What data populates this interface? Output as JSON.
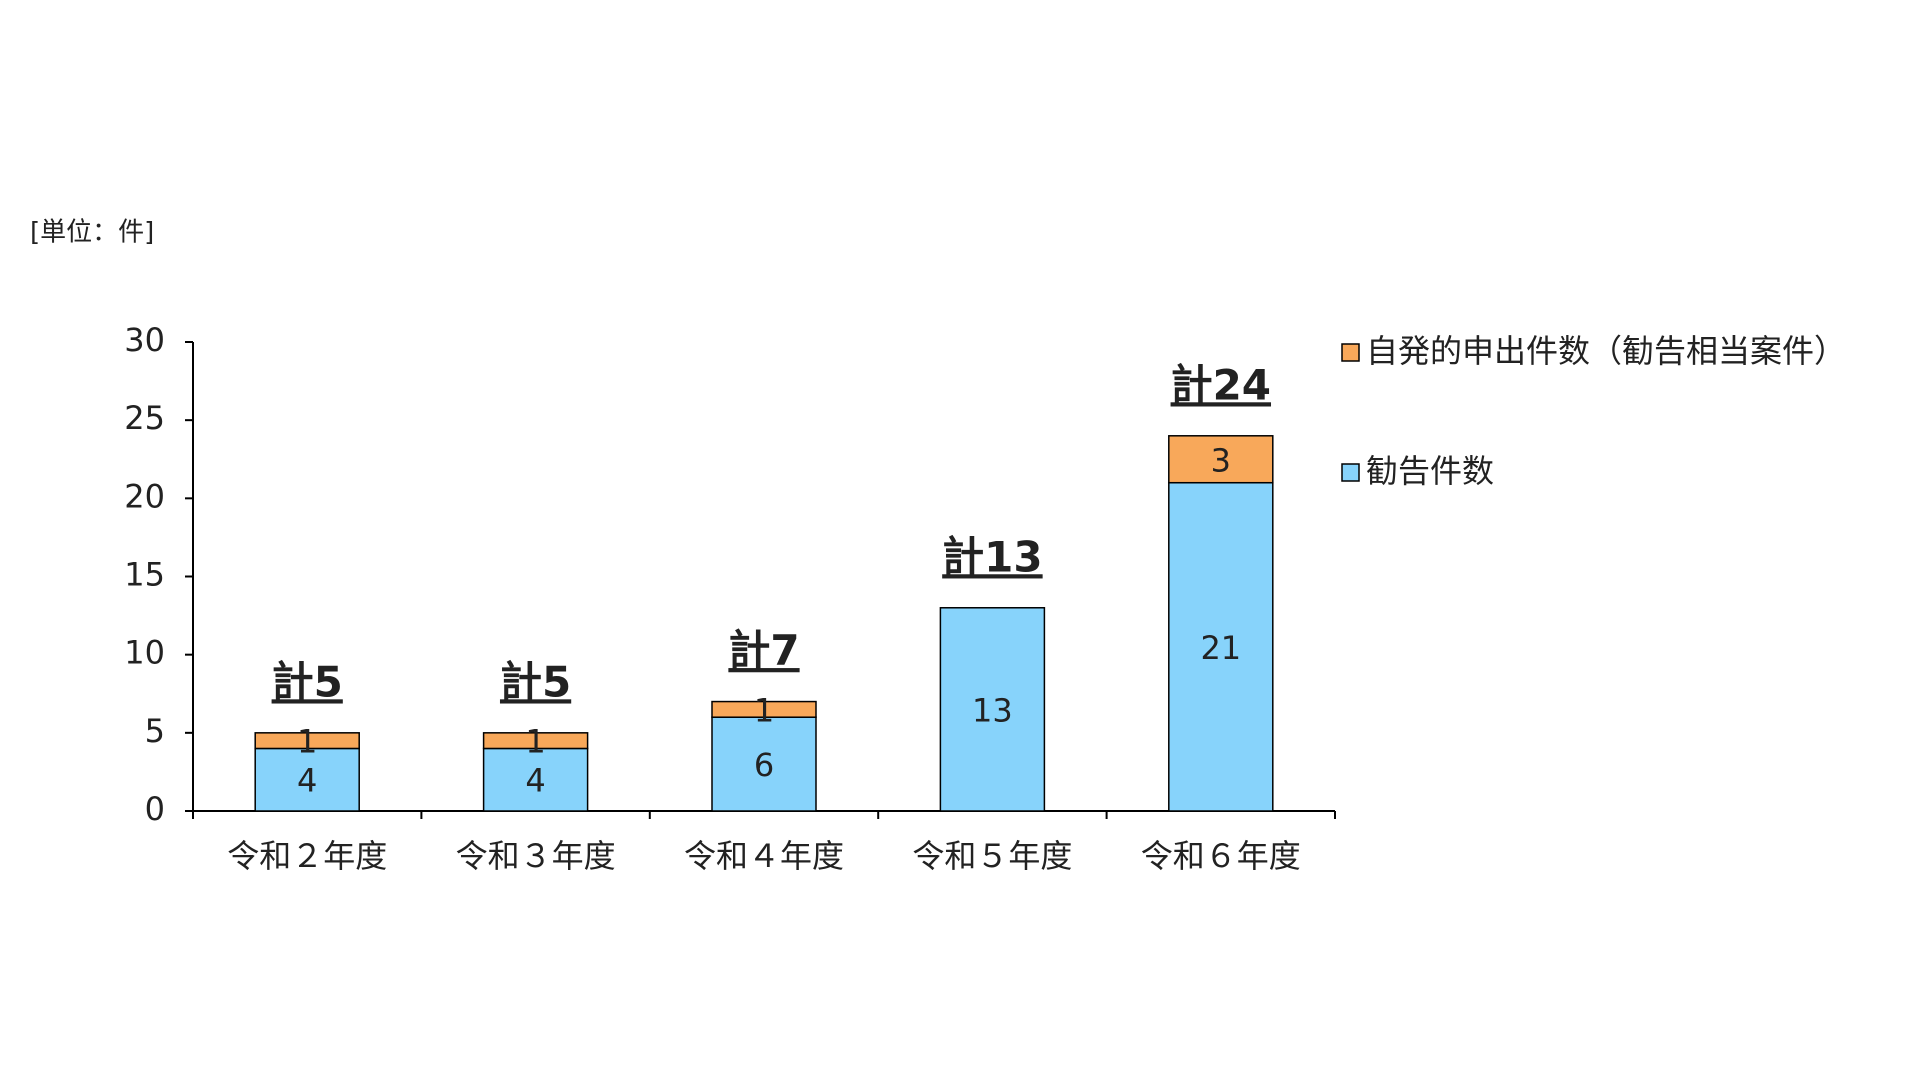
{
  "chart_data": {
    "type": "stacked_bar",
    "unit_label": "[単位：件]",
    "categories": [
      "令和２年度",
      "令和３年度",
      "令和４年度",
      "令和５年度",
      "令和６年度"
    ],
    "series": [
      {
        "name": "勧告件数",
        "color": "#87d3fb",
        "values": [
          4,
          4,
          6,
          13,
          21
        ]
      },
      {
        "name": "自発的申出件数（勧告相当案件）",
        "color": "#f8a85a",
        "values": [
          1,
          1,
          1,
          0,
          3
        ]
      }
    ],
    "total_labels": [
      "計5",
      "計5",
      "計7",
      "計13",
      "計24"
    ],
    "ylim": [
      0,
      30
    ],
    "yticks": [
      0,
      5,
      10,
      15,
      20,
      25,
      30
    ],
    "legend": "right",
    "grid": false
  }
}
